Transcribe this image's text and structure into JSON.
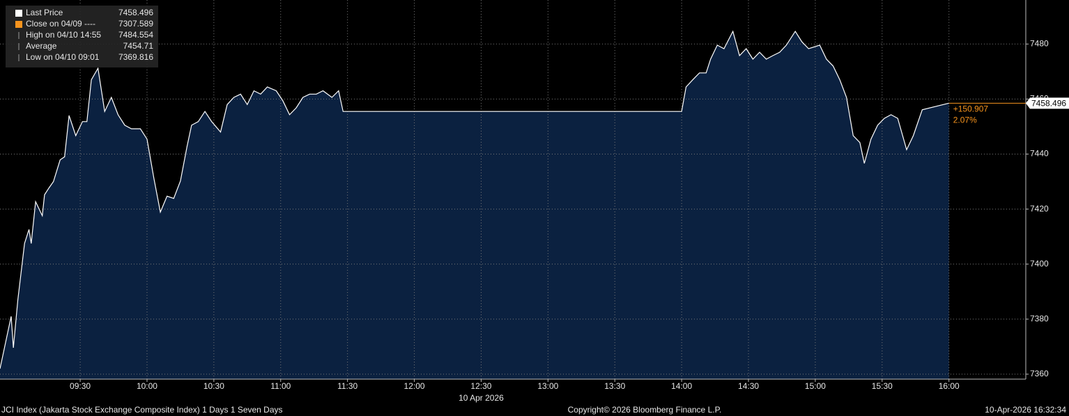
{
  "chart_data": {
    "type": "area",
    "x": [
      534,
      539,
      540,
      542,
      545,
      547,
      548,
      550,
      553,
      554,
      556,
      558,
      561,
      563,
      565,
      568,
      571,
      573,
      575,
      578,
      581,
      584,
      587,
      590,
      593,
      597,
      600,
      603,
      606,
      609,
      612,
      615,
      618,
      620,
      623,
      626,
      629,
      633,
      636,
      639,
      642,
      645,
      648,
      651,
      654,
      658,
      661,
      664,
      667,
      670,
      673,
      676,
      679,
      683,
      686,
      688,
      840,
      842,
      845,
      848,
      851,
      853,
      856,
      859,
      863,
      866,
      869,
      872,
      875,
      878,
      881,
      884,
      887,
      891,
      894,
      897,
      902,
      905,
      908,
      911,
      914,
      917,
      920,
      922,
      925,
      928,
      931,
      934,
      937,
      941,
      944,
      948,
      960
    ],
    "series": [
      {
        "name": "Last Price",
        "color": "#ffffff",
        "fill": "#0b2140",
        "values": [
          7362,
          7381,
          7369.6,
          7387,
          7407.5,
          7412.6,
          7407.5,
          7422.7,
          7417.6,
          7425.2,
          7427.7,
          7430,
          7437.9,
          7439,
          7454,
          7446.7,
          7451.8,
          7451.8,
          7467,
          7471.2,
          7455.5,
          7460.6,
          7454.3,
          7450.5,
          7449.2,
          7449.2,
          7445.4,
          7431.5,
          7418.9,
          7424.7,
          7423.9,
          7430.2,
          7442.9,
          7450.5,
          7451.8,
          7455.5,
          7451.8,
          7448,
          7458,
          7460.6,
          7461.8,
          7458,
          7463,
          7461.8,
          7464.4,
          7463,
          7459.3,
          7454.3,
          7456.8,
          7460.6,
          7461.8,
          7461.8,
          7463,
          7460.6,
          7463,
          7455.5,
          7455.5,
          7464.4,
          7467,
          7469.5,
          7469.5,
          7474.5,
          7479.6,
          7478.3,
          7484.6,
          7475.8,
          7478.3,
          7474.5,
          7477,
          7474.5,
          7475.8,
          7477,
          7479.6,
          7484.6,
          7480.8,
          7478.3,
          7479.6,
          7474.5,
          7472,
          7467,
          7460.6,
          7446.7,
          7444.2,
          7436.6,
          7445.4,
          7450.5,
          7453,
          7454.3,
          7453,
          7441.6,
          7446.7,
          7456.1,
          7458.496
        ]
      }
    ],
    "xlim": [
      534,
      994.5
    ],
    "ylim": [
      7358.2,
      7496
    ],
    "xticks": [
      {
        "value": 570,
        "label": "09:30"
      },
      {
        "value": 600,
        "label": "10:00"
      },
      {
        "value": 630,
        "label": "10:30"
      },
      {
        "value": 660,
        "label": "11:00"
      },
      {
        "value": 690,
        "label": "11:30"
      },
      {
        "value": 720,
        "label": "12:00"
      },
      {
        "value": 750,
        "label": "12:30"
      },
      {
        "value": 780,
        "label": "13:00"
      },
      {
        "value": 810,
        "label": "13:30"
      },
      {
        "value": 840,
        "label": "14:00"
      },
      {
        "value": 870,
        "label": "14:30"
      },
      {
        "value": 900,
        "label": "15:00"
      },
      {
        "value": 930,
        "label": "15:30"
      },
      {
        "value": 960,
        "label": "16:00"
      }
    ],
    "yticks": [
      7360,
      7380,
      7400,
      7420,
      7440,
      7460,
      7480
    ],
    "grid": true,
    "date_label": "10 Apr 2026",
    "legend": [
      {
        "label": "Close on 04/09 ----",
        "value": 7307.589,
        "color": "#f7941d"
      },
      {
        "label": "High on 04/10 14:55",
        "value": 7484.554
      },
      {
        "label": "Average",
        "value": 7454.71
      },
      {
        "label": "Low on 04/10 09:01",
        "value": 7369.816
      }
    ],
    "change_text": "+150.907",
    "change_pct_text": "2.07%",
    "change_color": "#f7941d",
    "footer": {
      "left": "JCI Index (Jakarta Stock Exchange Composite Index) 1 Days 1 Seven Days",
      "center": "Copyright© 2026 Bloomberg Finance L.P.",
      "right": "10-Apr-2026 16:32:34"
    }
  }
}
